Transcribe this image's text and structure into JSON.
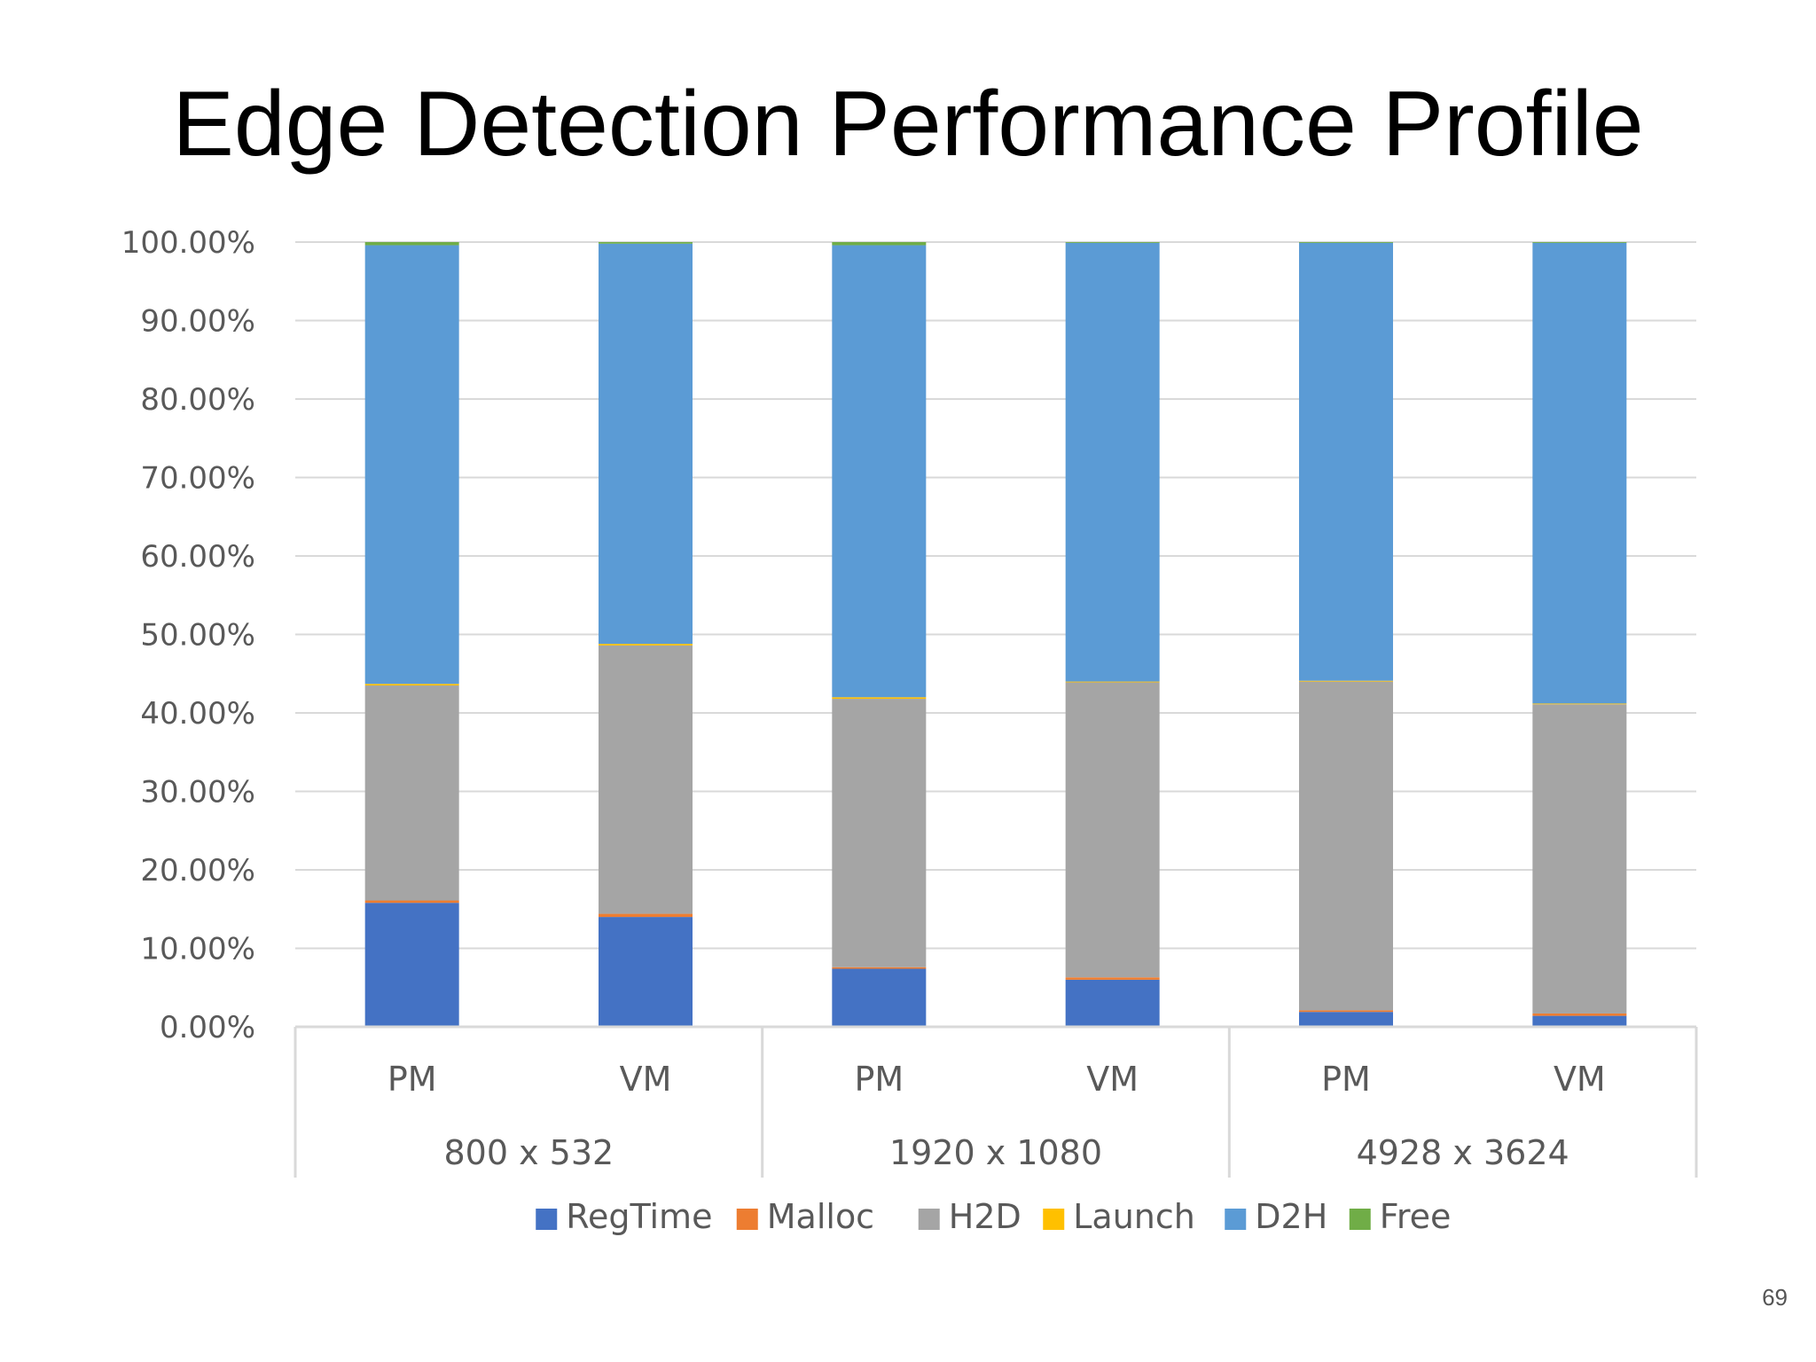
{
  "slide": {
    "title": "Edge Detection Performance Profile",
    "page_number": "69"
  },
  "chart_data": {
    "type": "bar",
    "stacked": true,
    "normalized": true,
    "ylim": [
      0,
      100
    ],
    "yticks": [
      0,
      10,
      20,
      30,
      40,
      50,
      60,
      70,
      80,
      90,
      100
    ],
    "ytick_labels": [
      "0.00%",
      "10.00%",
      "20.00%",
      "30.00%",
      "40.00%",
      "50.00%",
      "60.00%",
      "70.00%",
      "80.00%",
      "90.00%",
      "100.00%"
    ],
    "grid": true,
    "legend_position": "bottom",
    "groups": [
      "800 x 532",
      "1920 x 1080",
      "4928 x 3624"
    ],
    "categories": [
      "PM",
      "VM",
      "PM",
      "VM",
      "PM",
      "VM"
    ],
    "series": [
      {
        "name": "RegTime",
        "color": "#4472C4",
        "values": [
          15.8,
          14.0,
          7.4,
          6.0,
          1.9,
          1.4
        ]
      },
      {
        "name": "Malloc",
        "color": "#ED7D31",
        "values": [
          0.3,
          0.4,
          0.2,
          0.3,
          0.2,
          0.3
        ]
      },
      {
        "name": "H2D",
        "color": "#A5A5A5",
        "values": [
          27.4,
          34.2,
          34.2,
          37.6,
          41.9,
          39.4
        ]
      },
      {
        "name": "Launch",
        "color": "#FFC000",
        "values": [
          0.2,
          0.2,
          0.2,
          0.1,
          0.1,
          0.1
        ]
      },
      {
        "name": "D2H",
        "color": "#5B9BD5",
        "values": [
          55.9,
          51.0,
          57.6,
          55.9,
          55.8,
          58.7
        ]
      },
      {
        "name": "Free",
        "color": "#70AD47",
        "values": [
          0.4,
          0.2,
          0.4,
          0.1,
          0.1,
          0.1
        ]
      }
    ]
  }
}
